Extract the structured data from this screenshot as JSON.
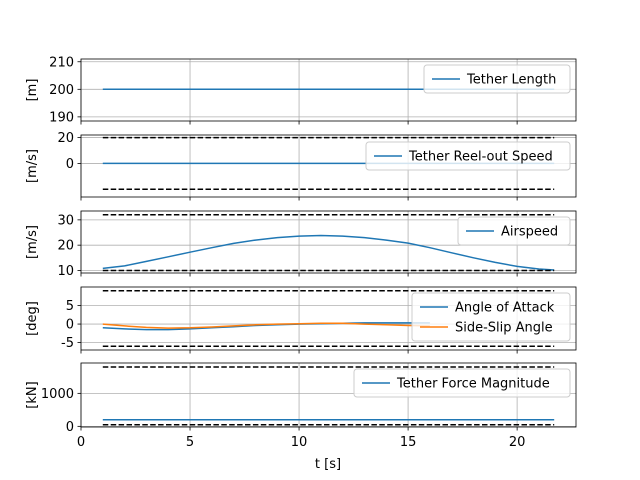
{
  "chart_data": {
    "type": "line",
    "xlabel": "t [s]",
    "x_ticks": [
      0,
      5,
      10,
      15,
      20
    ],
    "xlim": [
      0,
      22.7
    ],
    "grid": true,
    "subplots": [
      {
        "ylabel": "[m]",
        "ylim": [
          188.5,
          211
        ],
        "y_ticks": [
          190,
          200,
          210
        ],
        "legend_position": "upper right",
        "series": [
          {
            "name": "Tether Length",
            "color": "#1f77b4",
            "style": "solid",
            "x": [
              1.0,
              21.7
            ],
            "y": [
              200,
              200
            ]
          }
        ],
        "bounds": []
      },
      {
        "ylabel": "[m/s]",
        "ylim": [
          -26,
          22
        ],
        "y_ticks": [
          0,
          20
        ],
        "legend_position": "upper right",
        "series": [
          {
            "name": "Tether Reel-out Speed",
            "color": "#1f77b4",
            "style": "solid",
            "x": [
              1.0,
              21.7
            ],
            "y": [
              0,
              0
            ]
          }
        ],
        "bounds": [
          {
            "color": "#000000",
            "style": "dashed",
            "x": [
              1.0,
              21.7
            ],
            "y": [
              20,
              20
            ]
          },
          {
            "color": "#000000",
            "style": "dashed",
            "x": [
              1.0,
              21.7
            ],
            "y": [
              -20,
              -20
            ]
          }
        ]
      },
      {
        "ylabel": "[m/s]",
        "ylim": [
          9,
          33.5
        ],
        "y_ticks": [
          10,
          20,
          30
        ],
        "legend_position": "upper right",
        "series": [
          {
            "name": "Airspeed",
            "color": "#1f77b4",
            "style": "solid",
            "x": [
              1,
              2,
              3,
              4,
              5,
              6,
              7,
              8,
              9,
              10,
              11,
              12,
              13,
              14,
              15,
              16,
              17,
              18,
              19,
              20,
              21,
              21.7
            ],
            "y": [
              10.8,
              11.8,
              13.6,
              15.4,
              17.2,
              19.0,
              20.7,
              22.0,
              23.0,
              23.6,
              23.8,
              23.6,
              23.0,
              22.0,
              20.8,
              19.0,
              17.0,
              15.0,
              13.2,
              11.6,
              10.6,
              10.2
            ]
          }
        ],
        "bounds": [
          {
            "color": "#000000",
            "style": "dashed",
            "x": [
              1.0,
              21.7
            ],
            "y": [
              32,
              32
            ]
          },
          {
            "color": "#000000",
            "style": "dashed",
            "x": [
              1.0,
              21.7
            ],
            "y": [
              10,
              10
            ]
          }
        ]
      },
      {
        "ylabel": "[deg]",
        "ylim": [
          -7,
          10
        ],
        "y_ticks": [
          -5,
          0,
          5
        ],
        "legend_position": "right",
        "series": [
          {
            "name": "Angle of Attack",
            "color": "#1f77b4",
            "style": "solid",
            "x": [
              1,
              2,
              3,
              4,
              5,
              6,
              7,
              8,
              9,
              10,
              11,
              12,
              13,
              14,
              15,
              16
            ],
            "y": [
              -1.0,
              -1.3,
              -1.5,
              -1.5,
              -1.3,
              -1.0,
              -0.7,
              -0.4,
              -0.2,
              0.0,
              0.1,
              0.2,
              0.3,
              0.3,
              0.3,
              0.3
            ]
          },
          {
            "name": "Side-Slip Angle",
            "color": "#ff7f0e",
            "style": "solid",
            "x": [
              1,
              2,
              3,
              4,
              5,
              6,
              7,
              8,
              9,
              10,
              11,
              12,
              13,
              14,
              15,
              16
            ],
            "y": [
              0.0,
              -0.5,
              -0.9,
              -1.1,
              -1.0,
              -0.8,
              -0.5,
              -0.2,
              0.0,
              0.1,
              0.2,
              0.2,
              0.0,
              -0.2,
              -0.4,
              -0.5
            ]
          }
        ],
        "bounds": [
          {
            "color": "#000000",
            "style": "dashed",
            "x": [
              1.0,
              21.7
            ],
            "y": [
              9,
              9
            ]
          },
          {
            "color": "#000000",
            "style": "dashed",
            "x": [
              1.0,
              21.7
            ],
            "y": [
              -6,
              -6
            ]
          }
        ]
      },
      {
        "ylabel": "[kN]",
        "ylim": [
          -20,
          1920
        ],
        "y_ticks": [
          0,
          1000
        ],
        "legend_position": "upper right",
        "series": [
          {
            "name": "Tether Force Magnitude",
            "color": "#1f77b4",
            "style": "solid",
            "x": [
              1.0,
              21.7
            ],
            "y": [
              200,
              200
            ]
          }
        ],
        "bounds": [
          {
            "color": "#000000",
            "style": "dashed",
            "x": [
              1.0,
              21.7
            ],
            "y": [
              1800,
              1800
            ]
          },
          {
            "color": "#000000",
            "style": "dashed",
            "x": [
              1.0,
              21.7
            ],
            "y": [
              50,
              50
            ]
          }
        ]
      }
    ]
  }
}
